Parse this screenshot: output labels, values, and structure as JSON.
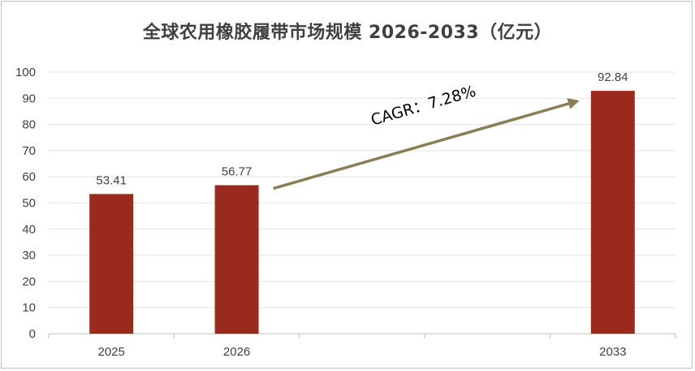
{
  "chart_data": {
    "type": "bar",
    "title": "全球农用橡胶履带市场规模 2026-2033（亿元）",
    "categories": [
      "2025",
      "2026",
      "",
      "",
      "2033"
    ],
    "values": [
      53.41,
      56.77,
      null,
      null,
      92.84
    ],
    "data_labels": [
      "53.41",
      "56.77",
      "",
      "",
      "92.84"
    ],
    "ylim": [
      0,
      100
    ],
    "yticks": [
      0,
      10,
      20,
      30,
      40,
      50,
      60,
      70,
      80,
      90,
      100
    ],
    "grid": true,
    "legend": "none",
    "bar_color": "#9b2a1e",
    "annotation": {
      "text": "CAGR：7.28%",
      "from_category": "2026",
      "to_category": "2033",
      "arrow_color": "#8b7d55"
    }
  }
}
